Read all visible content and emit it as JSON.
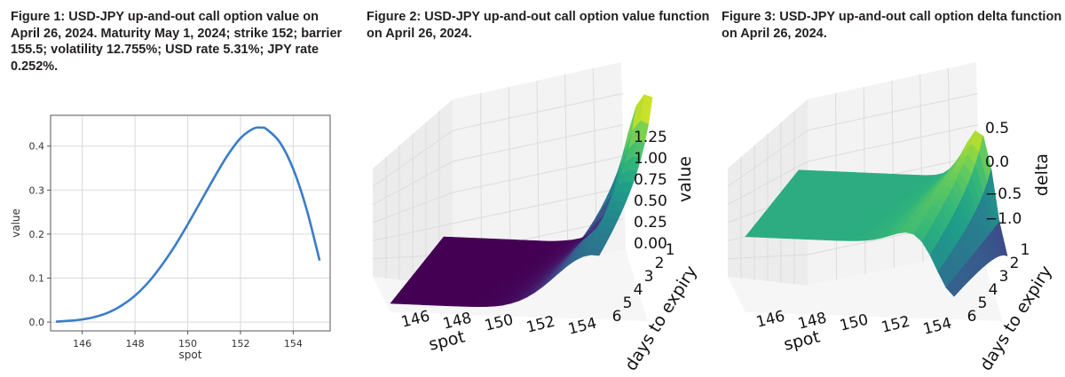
{
  "figures": [
    {
      "caption": "Figure 1: USD-JPY up-and-out call option value on April 26, 2024. Maturity May 1, 2024; strike 152; barrier 155.5; volatility 12.755%; USD rate 5.31%; JPY rate 0.252%."
    },
    {
      "caption": "Figure 2: USD-JPY up-and-out call option value function on April 26, 2024."
    },
    {
      "caption": "Figure 3: USD-JPY up-and-out call option delta function on April 26, 2024."
    }
  ],
  "chart_data": [
    {
      "type": "line",
      "title": "",
      "xlabel": "spot",
      "ylabel": "value",
      "xlim": [
        144.8,
        155.4
      ],
      "ylim": [
        -0.02,
        0.47
      ],
      "xticks": [
        "146",
        "148",
        "150",
        "152",
        "154"
      ],
      "yticks": [
        "0.0",
        "0.1",
        "0.2",
        "0.3",
        "0.4"
      ],
      "grid": true,
      "line_color": "#3a7dc9",
      "series": [
        {
          "x": [
            145.0,
            145.5,
            146.0,
            146.5,
            147.0,
            147.5,
            148.0,
            148.5,
            149.0,
            149.5,
            150.0,
            150.5,
            151.0,
            151.5,
            152.0,
            152.5,
            152.8,
            153.0,
            153.5,
            154.0,
            154.5,
            155.0
          ],
          "y": [
            0.001,
            0.003,
            0.006,
            0.012,
            0.022,
            0.038,
            0.06,
            0.09,
            0.128,
            0.172,
            0.222,
            0.275,
            0.328,
            0.378,
            0.418,
            0.44,
            0.442,
            0.438,
            0.408,
            0.348,
            0.258,
            0.14
          ]
        }
      ]
    },
    {
      "type": "surface",
      "title": "",
      "xlabel": "spot",
      "ylabel": "days to expiry",
      "zlabel": "value",
      "xticks": [
        "146",
        "148",
        "150",
        "152",
        "154"
      ],
      "yticks": [
        "1",
        "2",
        "3",
        "4",
        "5",
        "6"
      ],
      "zticks": [
        "0.00",
        "0.25",
        "0.50",
        "0.75",
        "1.00",
        "1.25"
      ],
      "zlim": [
        0.0,
        1.35
      ],
      "colormap": "viridis",
      "peak_value_near_barrier_1day": 1.3
    },
    {
      "type": "surface",
      "title": "",
      "xlabel": "spot",
      "ylabel": "days to expiry",
      "zlabel": "delta",
      "xticks": [
        "146",
        "148",
        "150",
        "152",
        "154"
      ],
      "yticks": [
        "1",
        "2",
        "3",
        "4",
        "5",
        "6"
      ],
      "zticks": [
        "0.5",
        "0.0",
        "−0.5",
        "−1.0"
      ],
      "zlim": [
        -1.3,
        0.8
      ],
      "colormap": "viridis",
      "max_delta": 0.75,
      "min_delta": -1.3
    }
  ]
}
